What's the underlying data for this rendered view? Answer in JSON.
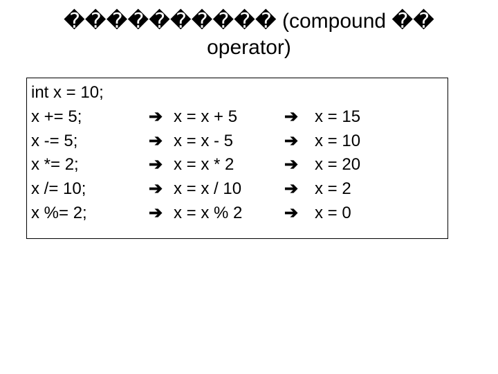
{
  "title": {
    "line1": "���������� (compound ��",
    "line2": "operator)",
    "fontsize": 30,
    "color": "#000000"
  },
  "table": {
    "border_color": "#000000",
    "font_size": 24,
    "text_color": "#000000",
    "arrow_glyph": "➔",
    "declaration": "int x = 10;",
    "rows": [
      {
        "stmt": "x += 5;",
        "expand": "x = x + 5",
        "result": "x = 15"
      },
      {
        "stmt": "x -= 5;",
        "expand": "x = x - 5",
        "result": "x = 10"
      },
      {
        "stmt": "x *= 2;",
        "expand": "x = x * 2",
        "result": " x = 20"
      },
      {
        "stmt": "x /= 10;",
        "expand": "x = x / 10",
        "result": "x = 2"
      },
      {
        "stmt": "x %= 2;",
        "expand": "x = x % 2",
        "result": "x = 0"
      }
    ]
  }
}
